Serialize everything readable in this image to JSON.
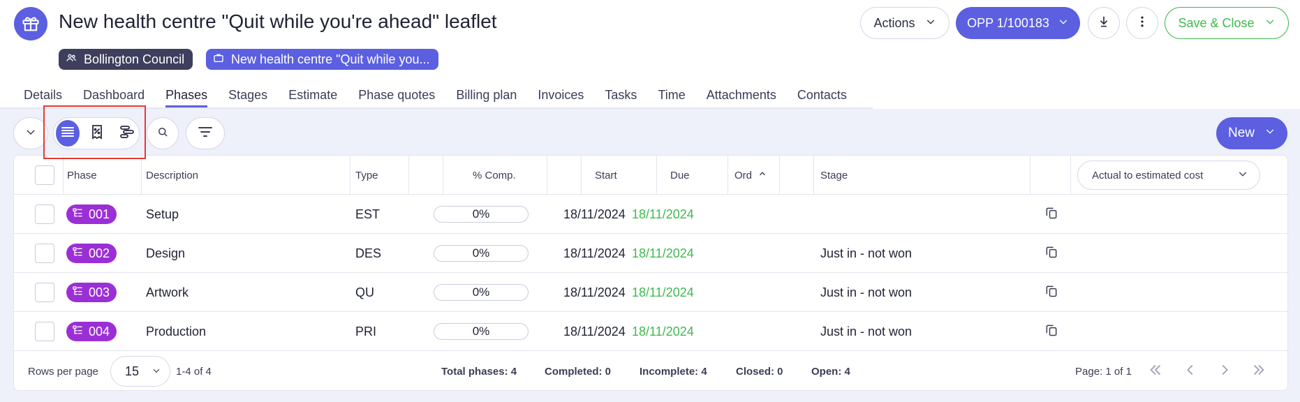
{
  "header": {
    "title": "New health centre \"Quit while you're ahead\" leaflet",
    "client_chip": "Bollington Council",
    "job_chip": "New health centre \"Quit while you...",
    "actions_label": "Actions",
    "opp_label": "OPP 1/100183",
    "save_close_label": "Save & Close"
  },
  "tabs": [
    {
      "label": "Details"
    },
    {
      "label": "Dashboard"
    },
    {
      "label": "Phases"
    },
    {
      "label": "Stages"
    },
    {
      "label": "Estimate"
    },
    {
      "label": "Phase quotes"
    },
    {
      "label": "Billing plan"
    },
    {
      "label": "Invoices"
    },
    {
      "label": "Tasks"
    },
    {
      "label": "Time"
    },
    {
      "label": "Attachments"
    },
    {
      "label": "Contacts"
    }
  ],
  "active_tab": "Phases",
  "toolbar": {
    "new_label": "New"
  },
  "table": {
    "columns": {
      "phase": "Phase",
      "description": "Description",
      "type": "Type",
      "comp": "% Comp.",
      "start": "Start",
      "due": "Due",
      "ord": "Ord",
      "stage": "Stage",
      "cost_select": "Actual to estimated cost"
    },
    "rows": [
      {
        "phase": "001",
        "description": "Setup",
        "type": "EST",
        "comp": "0%",
        "comp_value": 0,
        "start": "18/11/2024",
        "due": "18/11/2024",
        "stage": ""
      },
      {
        "phase": "002",
        "description": "Design",
        "type": "DES",
        "comp": "0%",
        "comp_value": 0,
        "start": "18/11/2024",
        "due": "18/11/2024",
        "stage": "Just in - not won"
      },
      {
        "phase": "003",
        "description": "Artwork",
        "type": "QU",
        "comp": "0%",
        "comp_value": 0,
        "start": "18/11/2024",
        "due": "18/11/2024",
        "stage": "Just in - not won"
      },
      {
        "phase": "004",
        "description": "Production",
        "type": "PRI",
        "comp": "0%",
        "comp_value": 0,
        "start": "18/11/2024",
        "due": "18/11/2024",
        "stage": "Just in - not won"
      }
    ]
  },
  "footer": {
    "rows_per_page_label": "Rows per page",
    "rows_per_page_value": "15",
    "range": "1-4 of 4",
    "total": "Total phases: 4",
    "completed": "Completed: 0",
    "incomplete": "Incomplete: 4",
    "closed": "Closed: 0",
    "open": "Open: 4",
    "page": "Page: 1 of 1"
  },
  "colors": {
    "accent": "#5b5fe0",
    "phase_badge": "#9b2fd6",
    "due_date": "#3fb950",
    "save_border": "#3fb950",
    "highlight": "#e53935"
  }
}
